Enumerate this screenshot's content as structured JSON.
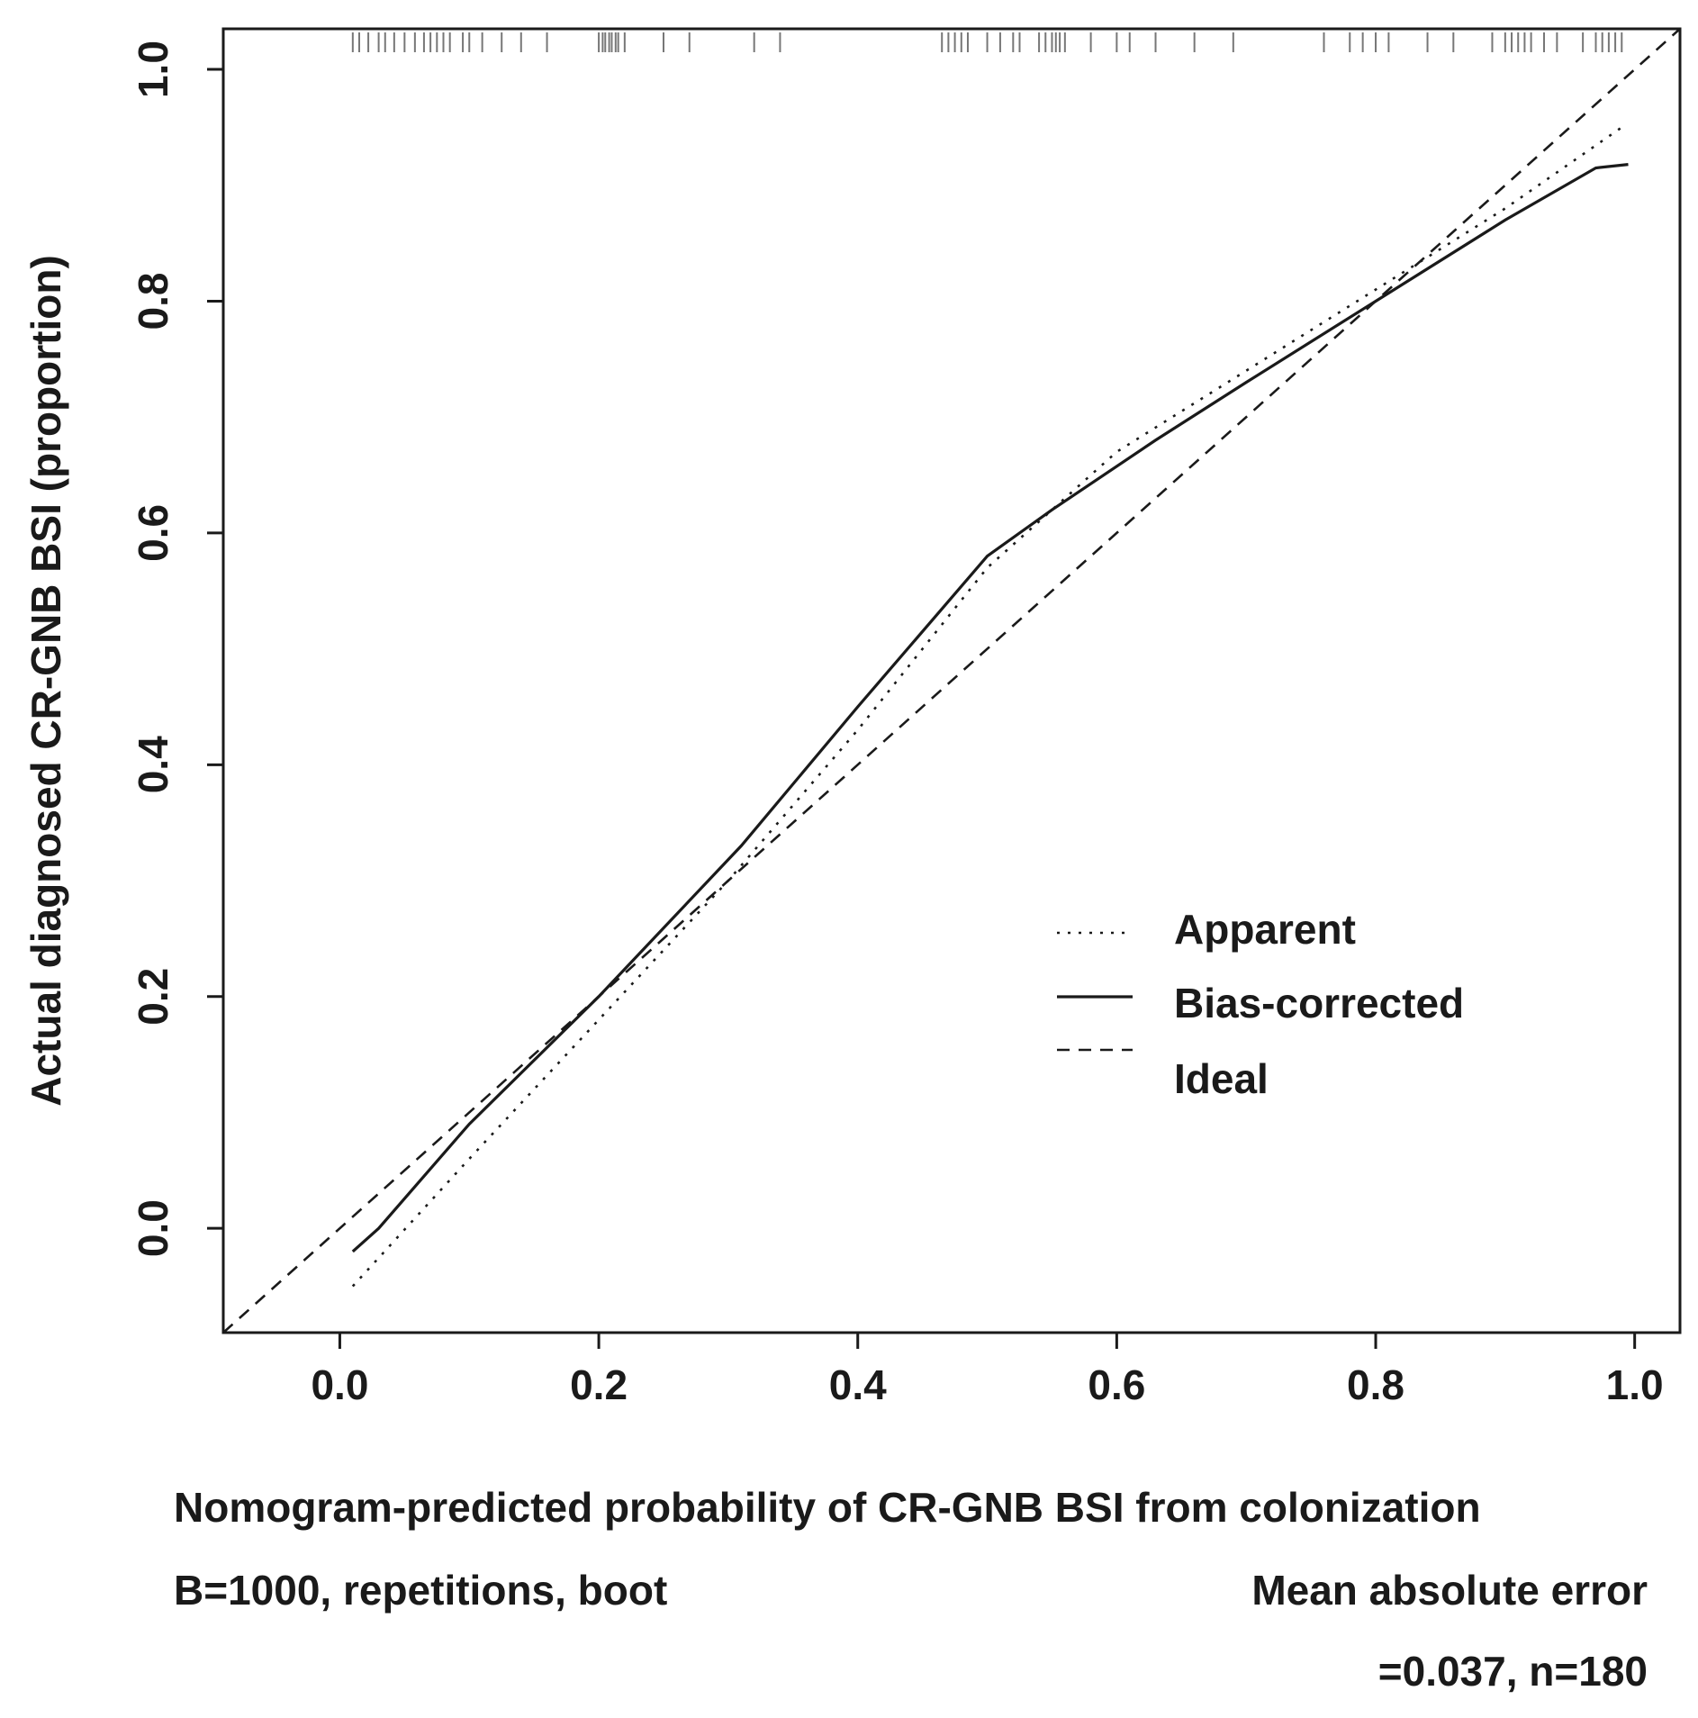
{
  "chart_data": {
    "type": "line",
    "xlabel": "Nomogram-predicted probability of CR-GNB BSI from colonization",
    "ylabel": "Actual diagnosed CR-GNB BSI (proportion)",
    "xlim": [
      -0.09,
      1.035
    ],
    "ylim": [
      -0.09,
      1.035
    ],
    "x_ticks": [
      "0.0",
      "0.2",
      "0.4",
      "0.6",
      "0.8",
      "1.0"
    ],
    "y_ticks": [
      "0.0",
      "0.2",
      "0.4",
      "0.6",
      "0.8",
      "1.0"
    ],
    "grid": false,
    "legend_position": "bottom-right",
    "series": [
      {
        "name": "Apparent",
        "style": "dotted",
        "x": [
          0.01,
          0.1,
          0.2,
          0.3,
          0.4,
          0.5,
          0.55,
          0.6,
          0.7,
          0.8,
          0.9,
          0.99
        ],
        "y": [
          -0.05,
          0.06,
          0.18,
          0.3,
          0.43,
          0.57,
          0.62,
          0.67,
          0.74,
          0.81,
          0.88,
          0.95
        ]
      },
      {
        "name": "Bias-corrected",
        "style": "solid",
        "x": [
          0.01,
          0.03,
          0.1,
          0.2,
          0.31,
          0.4,
          0.5,
          0.55,
          0.63,
          0.7,
          0.8,
          0.9,
          0.97,
          0.995
        ],
        "y": [
          -0.02,
          0.0,
          0.09,
          0.2,
          0.33,
          0.45,
          0.58,
          0.62,
          0.68,
          0.73,
          0.8,
          0.87,
          0.915,
          0.918
        ]
      },
      {
        "name": "Ideal",
        "style": "dashed",
        "x": [
          -0.09,
          1.035
        ],
        "y": [
          -0.09,
          1.035
        ]
      }
    ],
    "rug_x": [
      0.01,
      0.015,
      0.022,
      0.03,
      0.035,
      0.042,
      0.05,
      0.058,
      0.065,
      0.07,
      0.075,
      0.08,
      0.085,
      0.095,
      0.1,
      0.11,
      0.125,
      0.14,
      0.16,
      0.2,
      0.203,
      0.205,
      0.208,
      0.21,
      0.213,
      0.215,
      0.22,
      0.25,
      0.27,
      0.32,
      0.34,
      0.465,
      0.47,
      0.475,
      0.48,
      0.485,
      0.5,
      0.51,
      0.52,
      0.525,
      0.54,
      0.545,
      0.55,
      0.553,
      0.556,
      0.56,
      0.58,
      0.6,
      0.61,
      0.63,
      0.66,
      0.69,
      0.76,
      0.78,
      0.79,
      0.8,
      0.81,
      0.84,
      0.86,
      0.89,
      0.9,
      0.905,
      0.91,
      0.915,
      0.92,
      0.93,
      0.94,
      0.96,
      0.97,
      0.975,
      0.98,
      0.985,
      0.99
    ],
    "footer": {
      "left": "B=1000, repetitions, boot",
      "right_line1": "Mean absolute error",
      "right_line2": "=0.037, n=180"
    },
    "colors": {
      "line": "#1a1a1a",
      "rug": "#777777",
      "background": "#ffffff"
    }
  }
}
